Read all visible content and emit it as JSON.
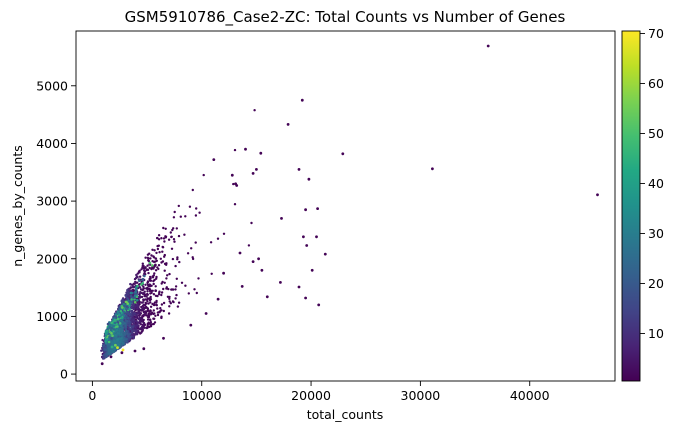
{
  "chart_data": {
    "type": "scatter",
    "title": "GSM5910786_Case2-ZC: Total Counts vs Number of Genes",
    "xlabel": "total_counts",
    "ylabel": "n_genes_by_counts",
    "xlim": [
      -1500,
      47800
    ],
    "ylim": [
      -120,
      5950
    ],
    "xticks": [
      0,
      10000,
      20000,
      30000,
      40000
    ],
    "xtick_labels": [
      "0",
      "10000",
      "20000",
      "30000",
      "40000"
    ],
    "yticks": [
      0,
      1000,
      2000,
      3000,
      4000,
      5000
    ],
    "ytick_labels": [
      "0",
      "1000",
      "2000",
      "3000",
      "4000",
      "5000"
    ],
    "grid": false,
    "colorbar": {
      "colormap": "viridis",
      "range": [
        0.5,
        70.5
      ],
      "ticks": [
        10,
        20,
        30,
        40,
        50,
        60,
        70
      ],
      "tick_labels": [
        "10",
        "20",
        "30",
        "40",
        "50",
        "60",
        "70"
      ]
    },
    "point_color_low": "#440154",
    "point_color_high": "#fde725",
    "points": [
      [
        36200,
        5690,
        1
      ],
      [
        46200,
        3110,
        1
      ],
      [
        31100,
        3560,
        1
      ],
      [
        22900,
        3820,
        1
      ],
      [
        19200,
        4750,
        1
      ],
      [
        17900,
        4330,
        1
      ],
      [
        14000,
        3900,
        1
      ],
      [
        15400,
        3830,
        1
      ],
      [
        11100,
        3720,
        1
      ],
      [
        18900,
        3550,
        1
      ],
      [
        19800,
        3380,
        1
      ],
      [
        15000,
        3550,
        1
      ],
      [
        14700,
        3480,
        1
      ],
      [
        12800,
        3450,
        1
      ],
      [
        13200,
        3270,
        1
      ],
      [
        13100,
        3300,
        1
      ],
      [
        17300,
        2700,
        1
      ],
      [
        20600,
        2870,
        1
      ],
      [
        19500,
        2850,
        1
      ],
      [
        19600,
        2230,
        1
      ],
      [
        19300,
        2380,
        1
      ],
      [
        20500,
        2380,
        1
      ],
      [
        21300,
        2080,
        1
      ],
      [
        20100,
        1800,
        1
      ],
      [
        20700,
        1200,
        1
      ],
      [
        19500,
        1320,
        1
      ],
      [
        18900,
        1510,
        1
      ],
      [
        17200,
        1590,
        1
      ],
      [
        15500,
        1800,
        1
      ],
      [
        14700,
        1950,
        1
      ],
      [
        15200,
        2000,
        1
      ],
      [
        13500,
        2100,
        1
      ],
      [
        13700,
        1520,
        1
      ],
      [
        12000,
        1750,
        1
      ],
      [
        11500,
        1300,
        1
      ],
      [
        16000,
        1340,
        1
      ],
      [
        10400,
        1050,
        1
      ],
      [
        9000,
        850,
        1
      ],
      [
        6500,
        620,
        1
      ],
      [
        4700,
        440,
        1
      ],
      [
        3900,
        400,
        1
      ],
      [
        2700,
        370,
        1
      ],
      [
        1700,
        300,
        1
      ],
      [
        900,
        180,
        1
      ],
      [
        2800,
        420,
        70
      ],
      [
        2300,
        460,
        65
      ],
      [
        1800,
        470,
        45
      ],
      [
        2100,
        500,
        55
      ],
      [
        1500,
        400,
        25
      ]
    ]
  }
}
